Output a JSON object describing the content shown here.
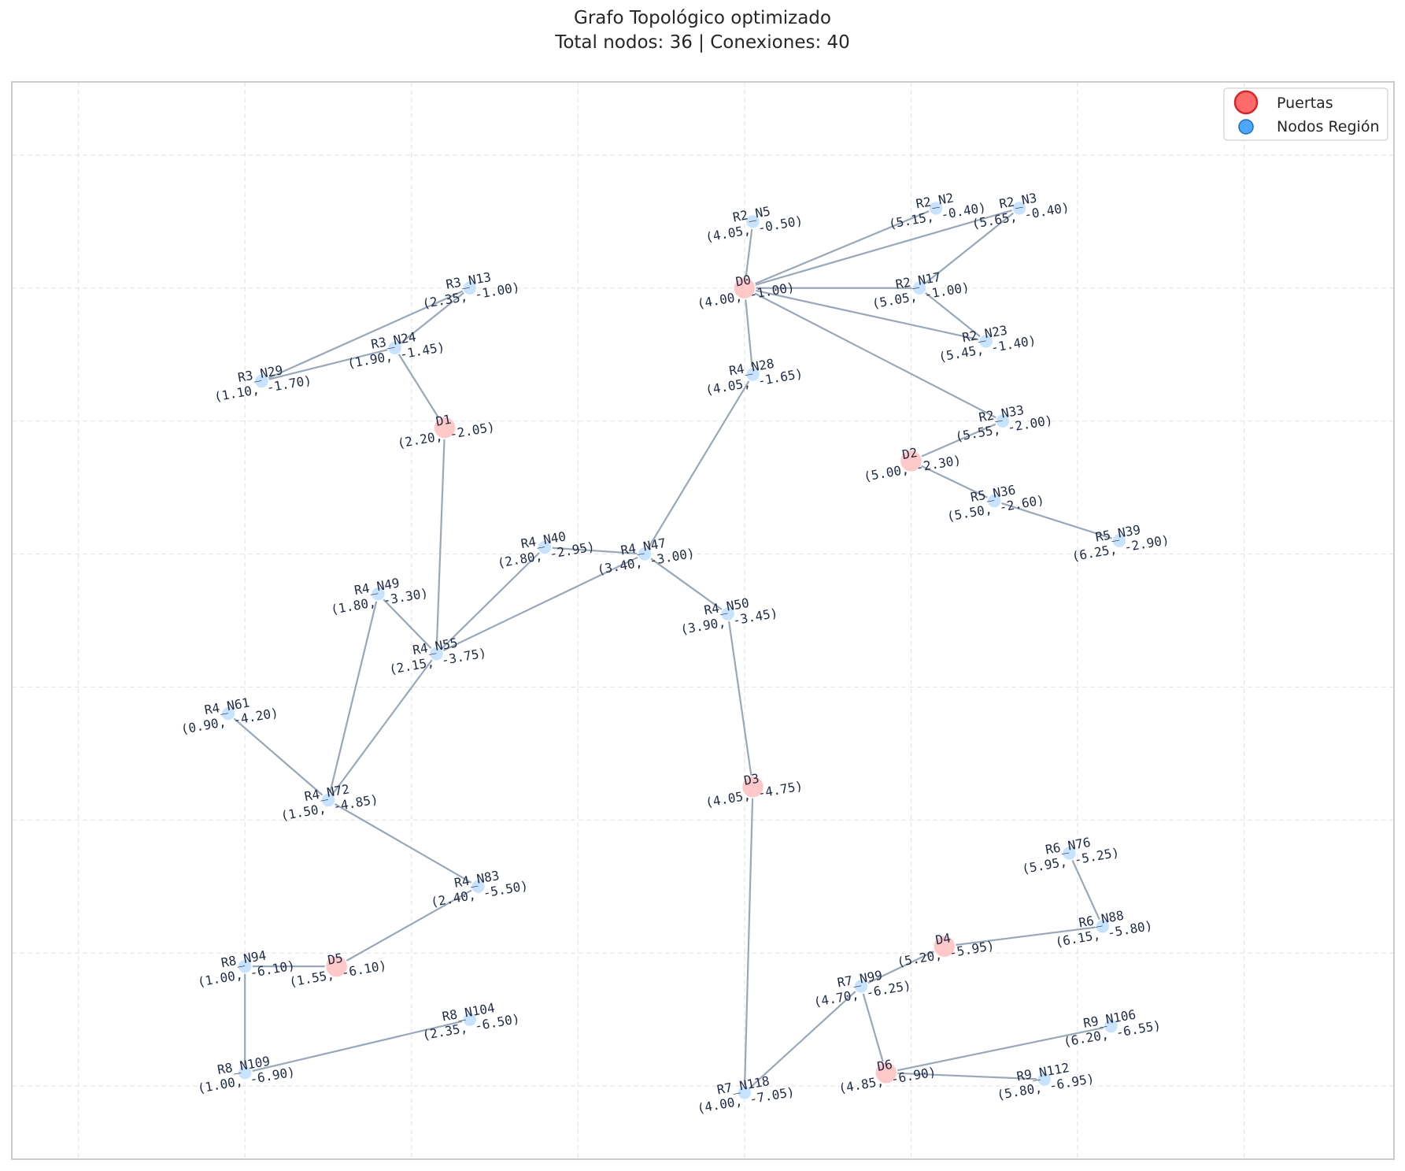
{
  "header": {
    "title": "Grafo Topológico optimizado",
    "subtitle": "Total nodos: 36 | Conexiones: 40"
  },
  "legend": {
    "placement": "top-right",
    "items": [
      {
        "label": "Puertas",
        "kind": "door"
      },
      {
        "label": "Nodos Región",
        "kind": "region"
      }
    ]
  },
  "colors": {
    "door_fill": "#ffc9c9",
    "door_legend_fill": "#ff6b6b",
    "door_legend_stroke": "#d62728",
    "region_fill": "#c7e3ff",
    "region_legend_fill": "#4da6ff",
    "region_legend_stroke": "#1f6fb2",
    "edge": "#99a8b8",
    "grid": "#e6e6e6",
    "frame": "#cccccc"
  },
  "axes": {
    "xlim": [
      -0.4,
      7.9
    ],
    "ylim": [
      -7.55,
      0.55
    ],
    "grid": true,
    "xgrid": [
      0,
      1,
      2,
      3,
      4,
      5,
      6,
      7
    ],
    "ygrid": [
      0,
      -1,
      -2,
      -3,
      -4,
      -5,
      -6,
      -7
    ]
  },
  "nodes": [
    {
      "id": "D0",
      "type": "door",
      "coord": "(4.00, -1.00)",
      "x": 4.0,
      "y": -1.0
    },
    {
      "id": "D1",
      "type": "door",
      "coord": "(2.20, -2.05)",
      "x": 2.2,
      "y": -2.05
    },
    {
      "id": "D2",
      "type": "door",
      "coord": "(5.00, -2.30)",
      "x": 5.0,
      "y": -2.3
    },
    {
      "id": "D3",
      "type": "door",
      "coord": "(4.05, -4.75)",
      "x": 4.05,
      "y": -4.75
    },
    {
      "id": "D4",
      "type": "door",
      "coord": "(5.20, -5.95)",
      "x": 5.2,
      "y": -5.95
    },
    {
      "id": "D5",
      "type": "door",
      "coord": "(1.55, -6.10)",
      "x": 1.55,
      "y": -6.1
    },
    {
      "id": "D6",
      "type": "door",
      "coord": "(4.85, -6.90)",
      "x": 4.85,
      "y": -6.9
    },
    {
      "id": "R2_N5",
      "type": "region",
      "coord": "(4.05, -0.50)",
      "x": 4.05,
      "y": -0.5
    },
    {
      "id": "R2_N2",
      "type": "region",
      "coord": "(5.15, -0.40)",
      "x": 5.15,
      "y": -0.4
    },
    {
      "id": "R2_N3",
      "type": "region",
      "coord": "(5.65, -0.40)",
      "x": 5.65,
      "y": -0.4
    },
    {
      "id": "R2_N17",
      "type": "region",
      "coord": "(5.05, -1.00)",
      "x": 5.05,
      "y": -1.0
    },
    {
      "id": "R2_N23",
      "type": "region",
      "coord": "(5.45, -1.40)",
      "x": 5.45,
      "y": -1.4
    },
    {
      "id": "R2_N33",
      "type": "region",
      "coord": "(5.55, -2.00)",
      "x": 5.55,
      "y": -2.0
    },
    {
      "id": "R3_N13",
      "type": "region",
      "coord": "(2.35, -1.00)",
      "x": 2.35,
      "y": -1.0
    },
    {
      "id": "R3_N24",
      "type": "region",
      "coord": "(1.90, -1.45)",
      "x": 1.9,
      "y": -1.45
    },
    {
      "id": "R3_N29",
      "type": "region",
      "coord": "(1.10, -1.70)",
      "x": 1.1,
      "y": -1.7
    },
    {
      "id": "R4_N28",
      "type": "region",
      "coord": "(4.05, -1.65)",
      "x": 4.05,
      "y": -1.65
    },
    {
      "id": "R5_N36",
      "type": "region",
      "coord": "(5.50, -2.60)",
      "x": 5.5,
      "y": -2.6
    },
    {
      "id": "R5_N39",
      "type": "region",
      "coord": "(6.25, -2.90)",
      "x": 6.25,
      "y": -2.9
    },
    {
      "id": "R4_N40",
      "type": "region",
      "coord": "(2.80, -2.95)",
      "x": 2.8,
      "y": -2.95
    },
    {
      "id": "R4_N47",
      "type": "region",
      "coord": "(3.40, -3.00)",
      "x": 3.4,
      "y": -3.0
    },
    {
      "id": "R4_N49",
      "type": "region",
      "coord": "(1.80, -3.30)",
      "x": 1.8,
      "y": -3.3
    },
    {
      "id": "R4_N50",
      "type": "region",
      "coord": "(3.90, -3.45)",
      "x": 3.9,
      "y": -3.45
    },
    {
      "id": "R4_N55",
      "type": "region",
      "coord": "(2.15, -3.75)",
      "x": 2.15,
      "y": -3.75
    },
    {
      "id": "R4_N61",
      "type": "region",
      "coord": "(0.90, -4.20)",
      "x": 0.9,
      "y": -4.2
    },
    {
      "id": "R4_N72",
      "type": "region",
      "coord": "(1.50, -4.85)",
      "x": 1.5,
      "y": -4.85
    },
    {
      "id": "R4_N83",
      "type": "region",
      "coord": "(2.40, -5.50)",
      "x": 2.4,
      "y": -5.5
    },
    {
      "id": "R6_N76",
      "type": "region",
      "coord": "(5.95, -5.25)",
      "x": 5.95,
      "y": -5.25
    },
    {
      "id": "R6_N88",
      "type": "region",
      "coord": "(6.15, -5.80)",
      "x": 6.15,
      "y": -5.8
    },
    {
      "id": "R7_N99",
      "type": "region",
      "coord": "(4.70, -6.25)",
      "x": 4.7,
      "y": -6.25
    },
    {
      "id": "R7_N118",
      "type": "region",
      "coord": "(4.00, -7.05)",
      "x": 4.0,
      "y": -7.05
    },
    {
      "id": "R8_N94",
      "type": "region",
      "coord": "(1.00, -6.10)",
      "x": 1.0,
      "y": -6.1
    },
    {
      "id": "R8_N104",
      "type": "region",
      "coord": "(2.35, -6.50)",
      "x": 2.35,
      "y": -6.5
    },
    {
      "id": "R8_N109",
      "type": "region",
      "coord": "(1.00, -6.90)",
      "x": 1.0,
      "y": -6.9
    },
    {
      "id": "R9_N106",
      "type": "region",
      "coord": "(6.20, -6.55)",
      "x": 6.2,
      "y": -6.55
    },
    {
      "id": "R9_N112",
      "type": "region",
      "coord": "(5.80, -6.95)",
      "x": 5.8,
      "y": -6.95
    }
  ],
  "edges": [
    [
      "D0",
      "R2_N5"
    ],
    [
      "D0",
      "R2_N2"
    ],
    [
      "D0",
      "R2_N3"
    ],
    [
      "D0",
      "R2_N17"
    ],
    [
      "D0",
      "R2_N23"
    ],
    [
      "D0",
      "R2_N33"
    ],
    [
      "D0",
      "R4_N28"
    ],
    [
      "R2_N3",
      "R2_N17"
    ],
    [
      "R2_N17",
      "R2_N23"
    ],
    [
      "R2_N33",
      "D2"
    ],
    [
      "D2",
      "R5_N36"
    ],
    [
      "R5_N36",
      "R5_N39"
    ],
    [
      "R3_N13",
      "R3_N24"
    ],
    [
      "R3_N13",
      "R3_N29"
    ],
    [
      "R3_N29",
      "R3_N24"
    ],
    [
      "R3_N24",
      "D1"
    ],
    [
      "D1",
      "R4_N55"
    ],
    [
      "R4_N28",
      "R4_N47"
    ],
    [
      "R4_N40",
      "R4_N47"
    ],
    [
      "R4_N40",
      "R4_N55"
    ],
    [
      "R4_N47",
      "R4_N55"
    ],
    [
      "R4_N47",
      "R4_N50"
    ],
    [
      "R4_N49",
      "R4_N55"
    ],
    [
      "R4_N49",
      "R4_N72"
    ],
    [
      "R4_N55",
      "R4_N72"
    ],
    [
      "R4_N61",
      "R4_N72"
    ],
    [
      "R4_N72",
      "R4_N83"
    ],
    [
      "R4_N50",
      "D3"
    ],
    [
      "D3",
      "R7_N118"
    ],
    [
      "R4_N83",
      "D5"
    ],
    [
      "R8_N94",
      "D5"
    ],
    [
      "R8_N94",
      "R8_N109"
    ],
    [
      "R8_N109",
      "R8_N104"
    ],
    [
      "R6_N76",
      "R6_N88"
    ],
    [
      "R6_N88",
      "D4"
    ],
    [
      "D4",
      "R7_N99"
    ],
    [
      "R7_N99",
      "R7_N118"
    ],
    [
      "R7_N99",
      "D6"
    ],
    [
      "D6",
      "R9_N106"
    ],
    [
      "D6",
      "R9_N112"
    ]
  ]
}
